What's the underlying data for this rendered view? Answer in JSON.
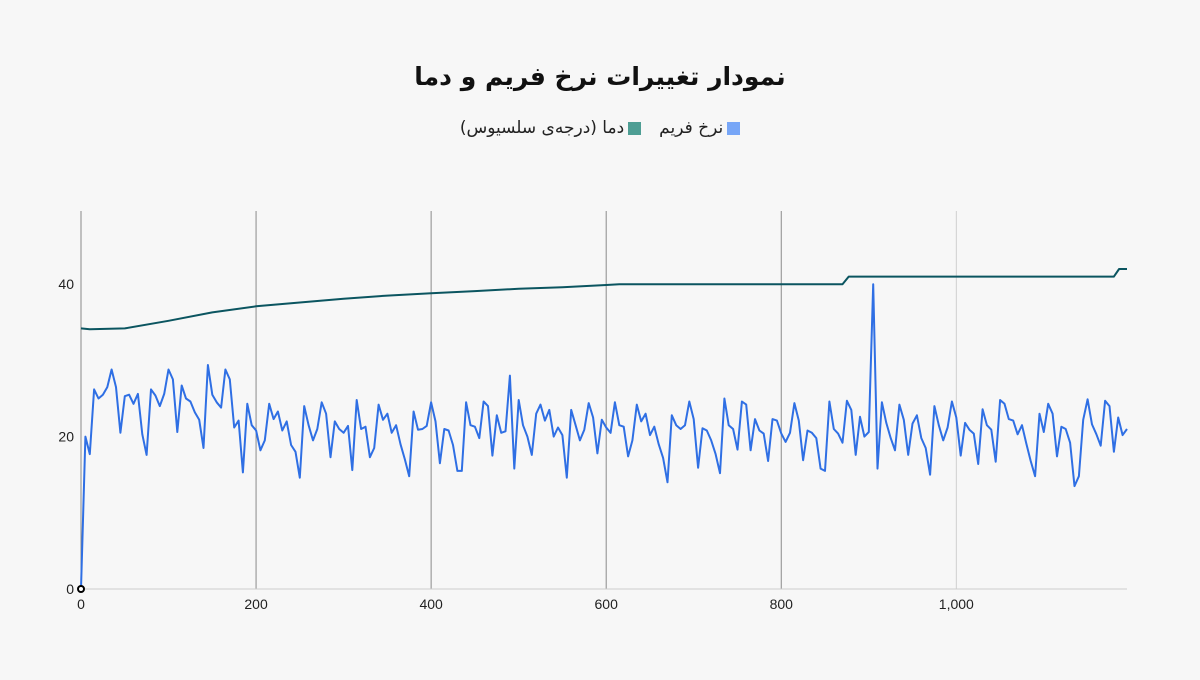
{
  "chart_data": {
    "type": "line",
    "title": "نمودار تغییرات نرخ فریم و دما",
    "xlabel": "",
    "ylabel": "",
    "xlim": [
      0,
      1195
    ],
    "ylim": [
      0,
      50
    ],
    "x_ticks": [
      "0",
      "200",
      "400",
      "600",
      "800",
      "1,000"
    ],
    "x_tick_values": [
      0,
      200,
      400,
      600,
      800,
      1000
    ],
    "y_ticks": [
      "0",
      "20",
      "40"
    ],
    "y_tick_values": [
      0,
      20,
      40
    ],
    "grid": "vertical",
    "legend_placement": "top",
    "series": [
      {
        "name": "نرخ فریم",
        "color": "#2f6fe4",
        "legend_color": "#77a6f7",
        "x_step": 5,
        "values": [
          0,
          20,
          17.7,
          26.2,
          25,
          25.5,
          26.5,
          28.8,
          26.5,
          20.5,
          25.3,
          25.5,
          24.3,
          25.6,
          20.3,
          17.6,
          26.2,
          25.4,
          24,
          25.6,
          28.8,
          27.5,
          20.6,
          26.7,
          25,
          24.6,
          23.2,
          22.2,
          18.5,
          29.4,
          25.5,
          24.5,
          23.8,
          28.8,
          27.5,
          21.2,
          22.1,
          15.3,
          24.3,
          21.5,
          20.8,
          18.2,
          19.5,
          24.3,
          22.3,
          23.3,
          20.8,
          22,
          18.9,
          18,
          14.6,
          24,
          21.5,
          19.5,
          21,
          24.5,
          23,
          17.3,
          22,
          21,
          20.5,
          21.4,
          15.6,
          24.8,
          21,
          21.3,
          17.3,
          18.5,
          24.2,
          22.2,
          23,
          20.5,
          21.5,
          19,
          17,
          14.8,
          23.3,
          20.9,
          21,
          21.4,
          24.5,
          22,
          16.5,
          21,
          20.8,
          18.9,
          15.5,
          15.5,
          24.5,
          21.5,
          21.3,
          19.8,
          24.6,
          24,
          17.5,
          22.8,
          20.5,
          20.7,
          28,
          15.8,
          24.8,
          21.5,
          20,
          17.6,
          23,
          24.2,
          22.1,
          23.5,
          20,
          21.2,
          20.2,
          14.6,
          23.5,
          21.5,
          19.5,
          20.9,
          24.4,
          22.5,
          17.8,
          22.2,
          21.2,
          20.5,
          24.5,
          21.5,
          21.3,
          17.4,
          19.5,
          24.2,
          22,
          23,
          20.2,
          21.3,
          19,
          17.2,
          14,
          22.8,
          21.5,
          21,
          21.5,
          24.6,
          22.3,
          15.9,
          21.1,
          20.8,
          19.5,
          17.7,
          15.2,
          25,
          21.5,
          21,
          18.3,
          24.6,
          24.2,
          18.2,
          22.3,
          20.8,
          20.4,
          16.8,
          22.3,
          22.1,
          20.4,
          19.3,
          20.5,
          24.4,
          22.1,
          16.9,
          20.8,
          20.5,
          19.8,
          15.8,
          15.5,
          24.6,
          21,
          20.4,
          19.2,
          24.7,
          23.5,
          17.6,
          22.6,
          20,
          20.6,
          40,
          15.8,
          24.5,
          21.8,
          19.8,
          18.2,
          24.2,
          22.2,
          17.6,
          21.7,
          22.8,
          19.8,
          18.5,
          15,
          24,
          21.5,
          19.5,
          21.2,
          24.6,
          22.5,
          17.5,
          21.8,
          20.9,
          20.4,
          16.4,
          23.6,
          21.5,
          20.9,
          16.7,
          24.8,
          24.3,
          22.3,
          22.1,
          20.3,
          21.5,
          19.1,
          16.8,
          14.8,
          23,
          20.6,
          24.3,
          23,
          17.4,
          21.3,
          21,
          19.2,
          13.5,
          14.8,
          22.2,
          24.9,
          21.6,
          20.3,
          18.8,
          24.7,
          24,
          18,
          22.5,
          20.2,
          21
        ]
      },
      {
        "name": "دما (درجه‌ی سلسیوس)",
        "color": "#0b5560",
        "legend_color": "#4e9e94",
        "points": [
          [
            0,
            34.2
          ],
          [
            10,
            34.1
          ],
          [
            50,
            34.2
          ],
          [
            100,
            35.2
          ],
          [
            150,
            36.3
          ],
          [
            200,
            37.1
          ],
          [
            250,
            37.6
          ],
          [
            300,
            38.1
          ],
          [
            350,
            38.5
          ],
          [
            400,
            38.8
          ],
          [
            450,
            39.1
          ],
          [
            500,
            39.4
          ],
          [
            550,
            39.6
          ],
          [
            600,
            39.9
          ],
          [
            615,
            40
          ],
          [
            870,
            40
          ],
          [
            877,
            41
          ],
          [
            1180,
            41
          ],
          [
            1186,
            42
          ],
          [
            1195,
            42
          ]
        ]
      }
    ]
  }
}
